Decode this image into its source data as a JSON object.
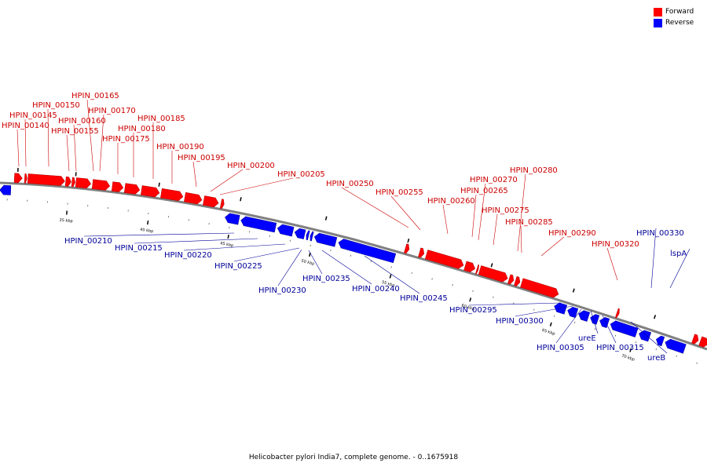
{
  "legend": {
    "forward_label": "Forward",
    "reverse_label": "Reverse",
    "forward_color": "#ff0000",
    "reverse_color": "#0000ff"
  },
  "caption": "Helicobacter pylori India7, complete genome. - 0..1675918",
  "colors": {
    "forward": "#ff0000",
    "reverse": "#0000ff",
    "forward_text": "#cc0000",
    "reverse_text": "#000099",
    "backbone": "#808080"
  },
  "ticks": [
    "35 kbp",
    "40 kbp",
    "45 kbp",
    "50 kbp",
    "55 kbp",
    "60 kbp",
    "65 kbp",
    "70 kbp"
  ],
  "forward_labels": [
    "HPIN_00140",
    "HPIN_00145",
    "HPIN_00150",
    "HPIN_00155",
    "HPIN_00160",
    "HPIN_00165",
    "HPIN_00170",
    "HPIN_00175",
    "HPIN_00180",
    "HPIN_00185",
    "HPIN_00190",
    "HPIN_00195",
    "HPIN_00200",
    "HPIN_00205",
    "HPIN_00250",
    "HPIN_00255",
    "HPIN_00260",
    "HPIN_00265",
    "HPIN_00270",
    "HPIN_00275",
    "HPIN_00280",
    "HPIN_00285",
    "HPIN_00290",
    "HPIN_00320"
  ],
  "reverse_labels": [
    "HPIN_00210",
    "HPIN_00215",
    "HPIN_00220",
    "HPIN_00225",
    "HPIN_00230",
    "HPIN_00235",
    "HPIN_00240",
    "HPIN_00245",
    "HPIN_00295",
    "HPIN_00300",
    "HPIN_00305",
    "ureE",
    "HPIN_00315",
    "ureB",
    "HPIN_00330",
    "lspA"
  ]
}
